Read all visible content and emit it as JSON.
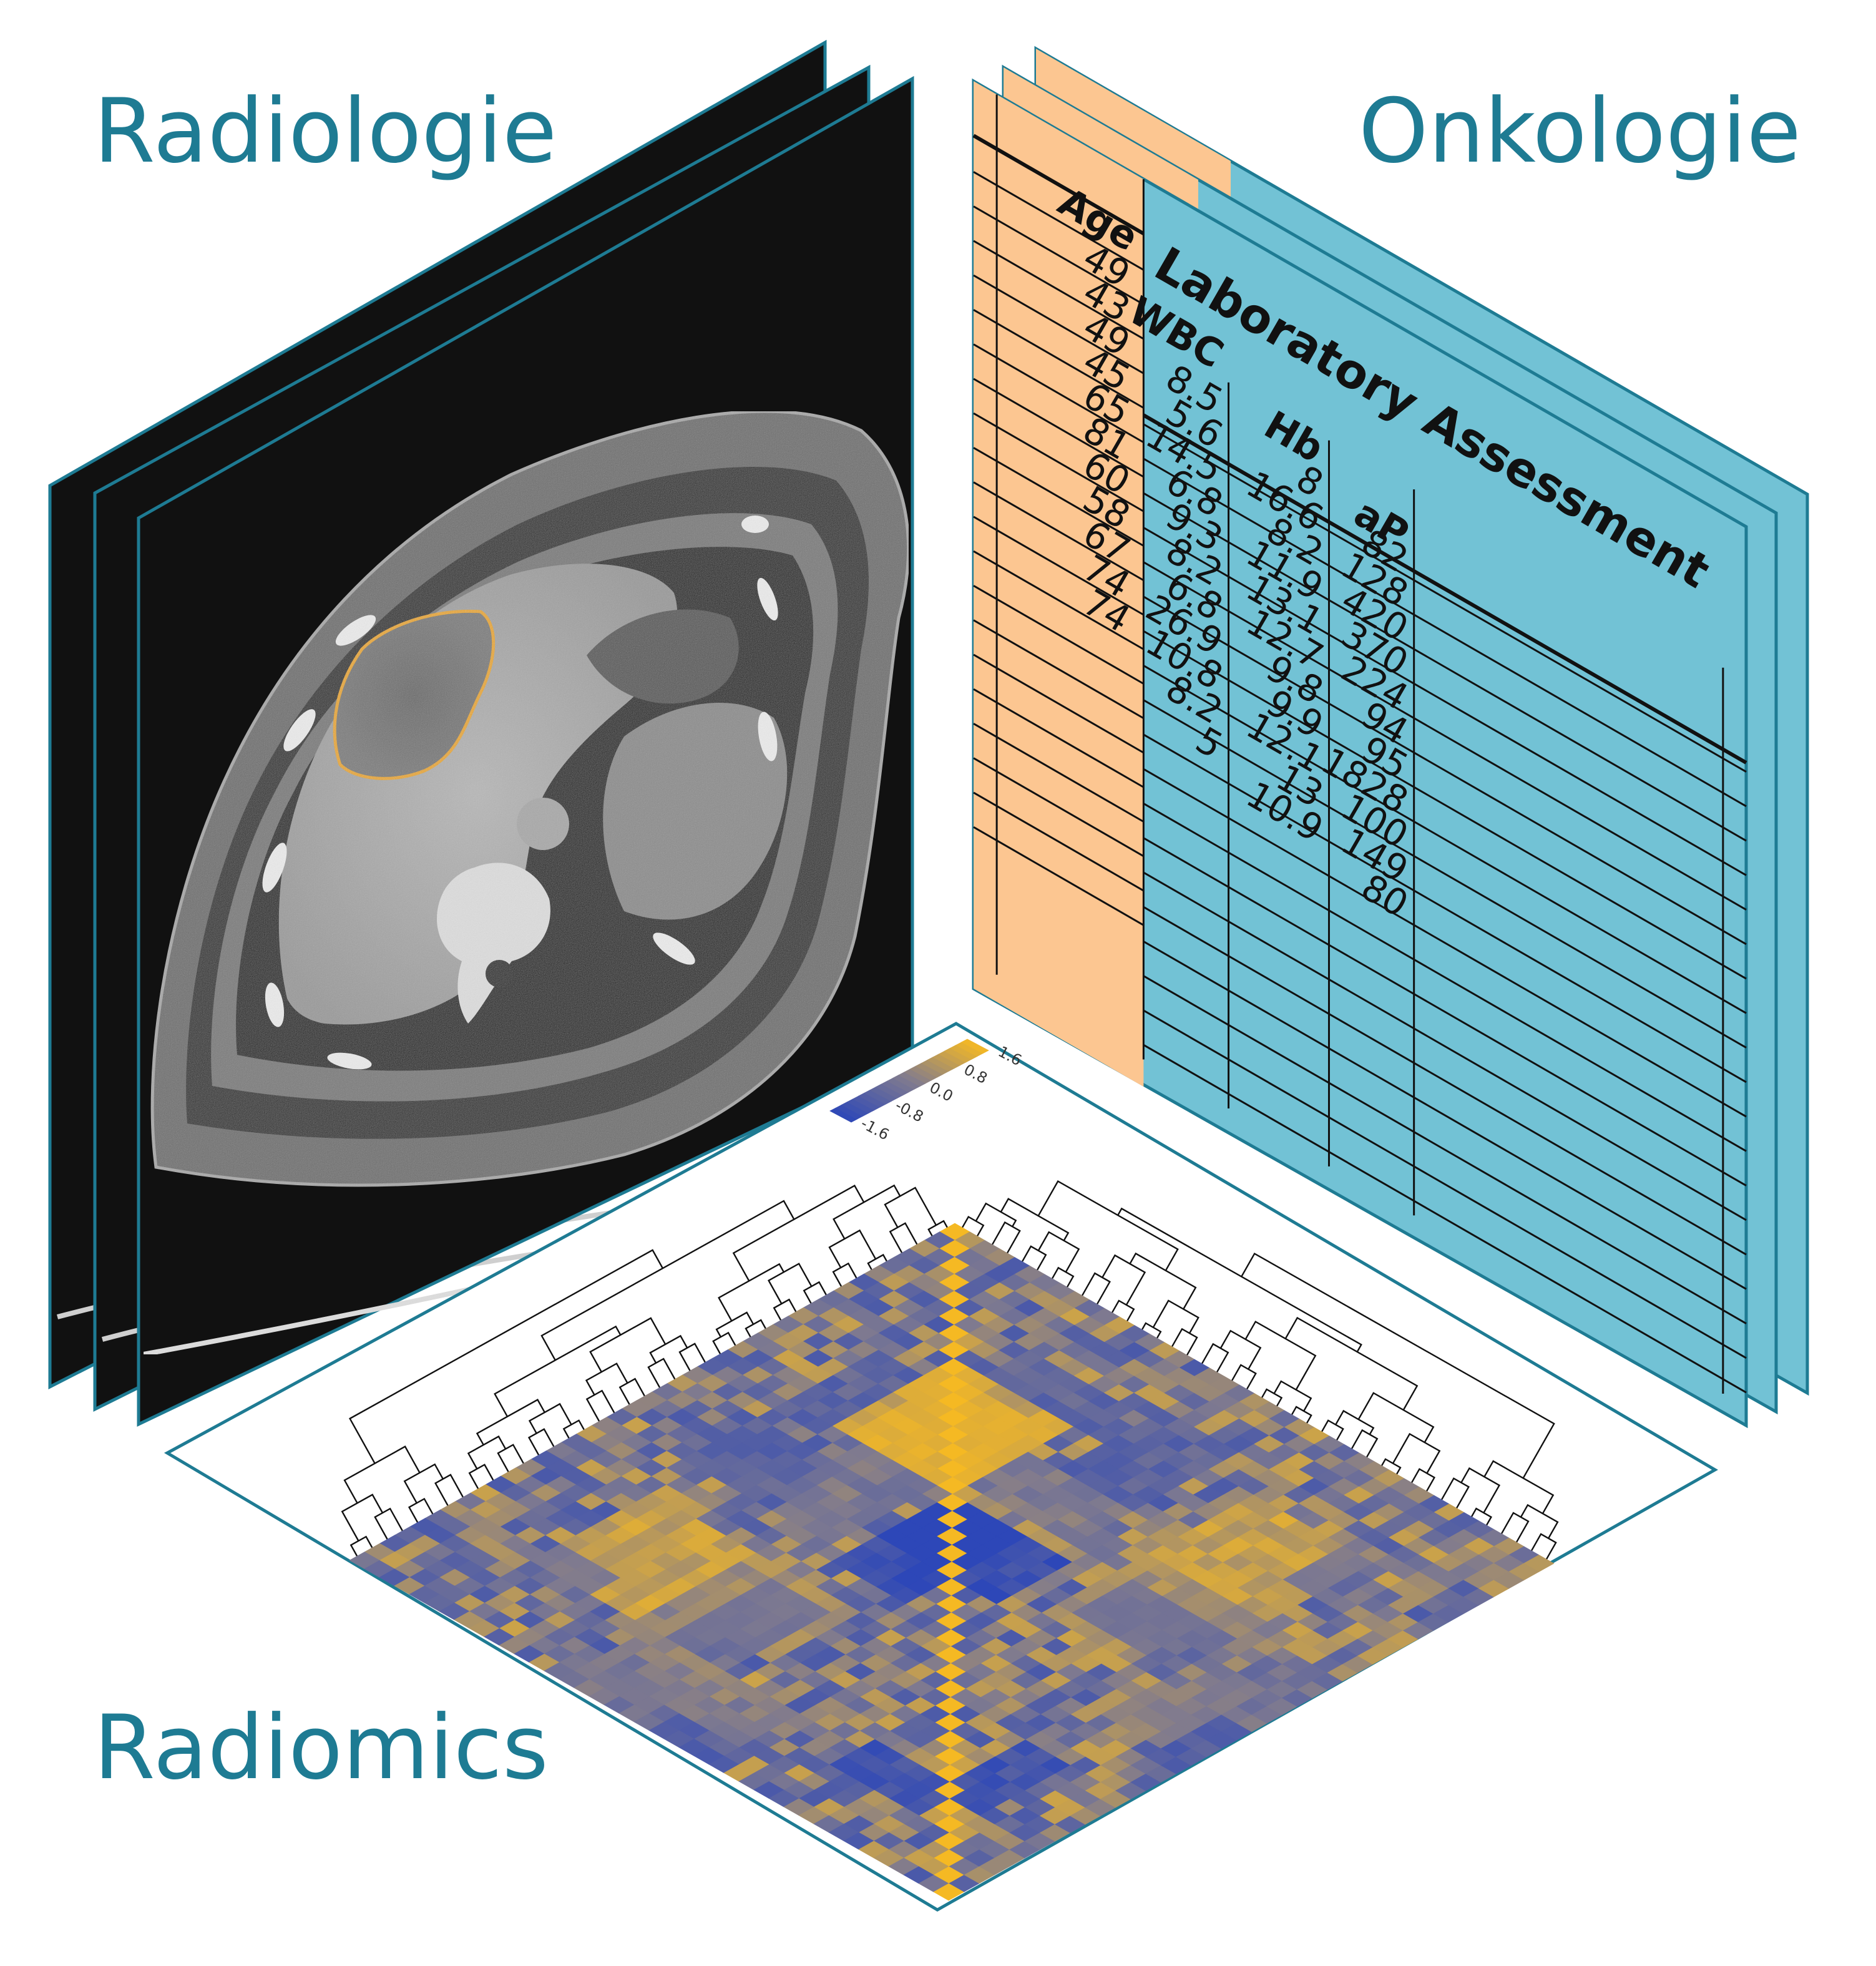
{
  "labels": {
    "radiologie": "Radiologie",
    "onkologie": "Onkologie",
    "radiomics": "Radiomics"
  },
  "colors": {
    "label": "#1e7b93",
    "panel_border": "#1e7b93",
    "table_orange": "#fcc691",
    "table_blue": "#72c2d5",
    "heat_low": "#2d47b8",
    "heat_mid": "#7f7a8f",
    "heat_high": "#f5b923",
    "roi_outline": "#e8a820"
  },
  "ct_scan": {
    "description_icon": "ct-slice-image",
    "slices": 3
  },
  "table": {
    "columns": {
      "age": "Age",
      "group": "Laboratory Assessment",
      "wbc": "WBC",
      "hb": "Hb",
      "ap": "aP"
    },
    "age": [
      "49",
      "43",
      "49",
      "45",
      "65",
      "81",
      "60",
      "58",
      "67",
      "74",
      "74"
    ],
    "wbc": [
      "8.5",
      "5.6",
      "14.5",
      "6.8",
      "9.3",
      "8.2",
      "6.8",
      "26.9",
      "10.8",
      "8.2",
      "5"
    ],
    "hb": [
      "8",
      "16.6",
      "8.2",
      "11.9",
      "13.1",
      "12.7",
      "9.8",
      "9.9",
      "12.1",
      "13",
      "10.9"
    ],
    "ap": [
      "82",
      "128",
      "420",
      "370",
      "224",
      "94",
      "95",
      "1828",
      "100",
      "149",
      "80"
    ]
  },
  "heatmap": {
    "colorbar_ticks": [
      "1.6",
      "0.8",
      "0.0",
      "-0.8",
      "-1.6"
    ]
  }
}
